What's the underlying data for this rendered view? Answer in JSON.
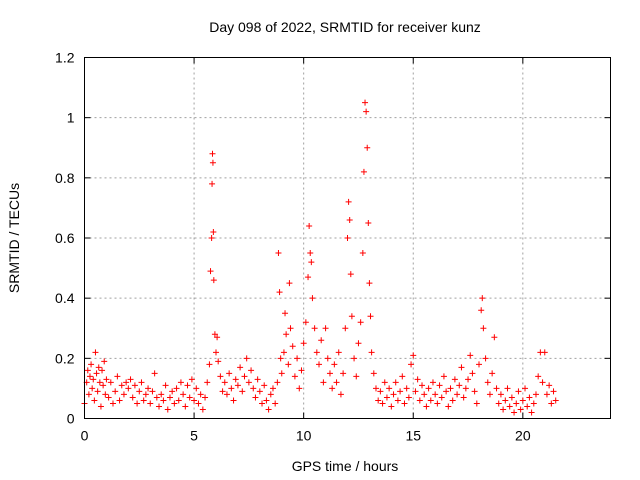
{
  "chart_data": {
    "type": "scatter",
    "title": "Day 098 of 2022, SRMTID for receiver kunz",
    "xlabel": "GPS time / hours",
    "ylabel": "SRMTID / TECUs",
    "xlim": [
      0,
      24
    ],
    "ylim": [
      0,
      1.2
    ],
    "x_ticks": [
      0,
      5,
      10,
      15,
      20
    ],
    "x_tick_labels": [
      "0",
      "5",
      "10",
      "15",
      "20"
    ],
    "y_ticks": [
      0,
      0.2,
      0.4,
      0.6,
      0.8,
      1.0,
      1.2
    ],
    "y_tick_labels": [
      "0",
      "0.2",
      "0.4",
      "0.6",
      "0.8",
      "1",
      "1.2"
    ],
    "grid": true,
    "marker": "+",
    "color": "#ff0000",
    "series": [
      {
        "name": "SRMTID",
        "points": [
          [
            0.0,
            0.05
          ],
          [
            0.1,
            0.12
          ],
          [
            0.15,
            0.16
          ],
          [
            0.2,
            0.08
          ],
          [
            0.25,
            0.14
          ],
          [
            0.3,
            0.18
          ],
          [
            0.35,
            0.1
          ],
          [
            0.4,
            0.13
          ],
          [
            0.45,
            0.06
          ],
          [
            0.5,
            0.22
          ],
          [
            0.55,
            0.15
          ],
          [
            0.6,
            0.09
          ],
          [
            0.65,
            0.17
          ],
          [
            0.7,
            0.12
          ],
          [
            0.75,
            0.04
          ],
          [
            0.8,
            0.16
          ],
          [
            0.85,
            0.11
          ],
          [
            0.9,
            0.19
          ],
          [
            0.95,
            0.08
          ],
          [
            1.0,
            0.13
          ],
          [
            1.1,
            0.07
          ],
          [
            1.2,
            0.12
          ],
          [
            1.3,
            0.05
          ],
          [
            1.4,
            0.09
          ],
          [
            1.5,
            0.14
          ],
          [
            1.6,
            0.06
          ],
          [
            1.7,
            0.11
          ],
          [
            1.8,
            0.08
          ],
          [
            1.9,
            0.12
          ],
          [
            2.0,
            0.1
          ],
          [
            2.1,
            0.13
          ],
          [
            2.2,
            0.07
          ],
          [
            2.3,
            0.11
          ],
          [
            2.4,
            0.05
          ],
          [
            2.5,
            0.09
          ],
          [
            2.6,
            0.12
          ],
          [
            2.7,
            0.06
          ],
          [
            2.8,
            0.08
          ],
          [
            2.9,
            0.1
          ],
          [
            3.0,
            0.05
          ],
          [
            3.1,
            0.09
          ],
          [
            3.2,
            0.15
          ],
          [
            3.3,
            0.07
          ],
          [
            3.4,
            0.04
          ],
          [
            3.5,
            0.08
          ],
          [
            3.6,
            0.06
          ],
          [
            3.7,
            0.11
          ],
          [
            3.8,
            0.03
          ],
          [
            3.9,
            0.07
          ],
          [
            4.0,
            0.09
          ],
          [
            4.1,
            0.05
          ],
          [
            4.2,
            0.1
          ],
          [
            4.3,
            0.06
          ],
          [
            4.4,
            0.12
          ],
          [
            4.5,
            0.08
          ],
          [
            4.6,
            0.04
          ],
          [
            4.7,
            0.11
          ],
          [
            4.8,
            0.07
          ],
          [
            4.9,
            0.13
          ],
          [
            5.0,
            0.06
          ],
          [
            5.1,
            0.1
          ],
          [
            5.2,
            0.05
          ],
          [
            5.3,
            0.08
          ],
          [
            5.4,
            0.03
          ],
          [
            5.5,
            0.07
          ],
          [
            5.6,
            0.12
          ],
          [
            5.7,
            0.18
          ],
          [
            5.75,
            0.49
          ],
          [
            5.8,
            0.6
          ],
          [
            5.82,
            0.78
          ],
          [
            5.84,
            0.88
          ],
          [
            5.86,
            0.85
          ],
          [
            5.88,
            0.62
          ],
          [
            5.9,
            0.46
          ],
          [
            5.95,
            0.28
          ],
          [
            6.0,
            0.22
          ],
          [
            6.05,
            0.27
          ],
          [
            6.1,
            0.19
          ],
          [
            6.2,
            0.14
          ],
          [
            6.3,
            0.09
          ],
          [
            6.4,
            0.12
          ],
          [
            6.5,
            0.08
          ],
          [
            6.6,
            0.15
          ],
          [
            6.7,
            0.1
          ],
          [
            6.8,
            0.06
          ],
          [
            6.9,
            0.13
          ],
          [
            7.0,
            0.11
          ],
          [
            7.1,
            0.17
          ],
          [
            7.2,
            0.09
          ],
          [
            7.3,
            0.14
          ],
          [
            7.4,
            0.2
          ],
          [
            7.5,
            0.12
          ],
          [
            7.6,
            0.16
          ],
          [
            7.7,
            0.1
          ],
          [
            7.8,
            0.07
          ],
          [
            7.9,
            0.13
          ],
          [
            8.0,
            0.09
          ],
          [
            8.1,
            0.05
          ],
          [
            8.2,
            0.11
          ],
          [
            8.3,
            0.06
          ],
          [
            8.4,
            0.03
          ],
          [
            8.5,
            0.08
          ],
          [
            8.6,
            0.1
          ],
          [
            8.7,
            0.05
          ],
          [
            8.8,
            0.12
          ],
          [
            8.85,
            0.55
          ],
          [
            8.9,
            0.42
          ],
          [
            8.95,
            0.2
          ],
          [
            9.0,
            0.15
          ],
          [
            9.1,
            0.22
          ],
          [
            9.15,
            0.35
          ],
          [
            9.2,
            0.28
          ],
          [
            9.3,
            0.18
          ],
          [
            9.35,
            0.45
          ],
          [
            9.4,
            0.3
          ],
          [
            9.5,
            0.24
          ],
          [
            9.6,
            0.14
          ],
          [
            9.7,
            0.2
          ],
          [
            9.8,
            0.1
          ],
          [
            9.9,
            0.16
          ],
          [
            10.0,
            0.25
          ],
          [
            10.1,
            0.32
          ],
          [
            10.2,
            0.47
          ],
          [
            10.25,
            0.64
          ],
          [
            10.3,
            0.55
          ],
          [
            10.35,
            0.52
          ],
          [
            10.4,
            0.4
          ],
          [
            10.5,
            0.3
          ],
          [
            10.6,
            0.22
          ],
          [
            10.7,
            0.18
          ],
          [
            10.8,
            0.26
          ],
          [
            10.9,
            0.12
          ],
          [
            11.0,
            0.3
          ],
          [
            11.1,
            0.2
          ],
          [
            11.2,
            0.15
          ],
          [
            11.3,
            0.1
          ],
          [
            11.4,
            0.18
          ],
          [
            11.5,
            0.12
          ],
          [
            11.6,
            0.22
          ],
          [
            11.7,
            0.08
          ],
          [
            11.8,
            0.15
          ],
          [
            11.9,
            0.3
          ],
          [
            12.0,
            0.6
          ],
          [
            12.05,
            0.72
          ],
          [
            12.1,
            0.66
          ],
          [
            12.15,
            0.48
          ],
          [
            12.2,
            0.34
          ],
          [
            12.3,
            0.2
          ],
          [
            12.4,
            0.14
          ],
          [
            12.5,
            0.25
          ],
          [
            12.6,
            0.32
          ],
          [
            12.7,
            0.55
          ],
          [
            12.75,
            0.82
          ],
          [
            12.8,
            1.05
          ],
          [
            12.85,
            1.02
          ],
          [
            12.9,
            0.9
          ],
          [
            12.95,
            0.65
          ],
          [
            13.0,
            0.45
          ],
          [
            13.05,
            0.34
          ],
          [
            13.1,
            0.22
          ],
          [
            13.2,
            0.15
          ],
          [
            13.3,
            0.1
          ],
          [
            13.4,
            0.06
          ],
          [
            13.5,
            0.09
          ],
          [
            13.6,
            0.05
          ],
          [
            13.7,
            0.12
          ],
          [
            13.8,
            0.07
          ],
          [
            13.9,
            0.1
          ],
          [
            14.0,
            0.04
          ],
          [
            14.1,
            0.08
          ],
          [
            14.2,
            0.12
          ],
          [
            14.3,
            0.06
          ],
          [
            14.4,
            0.09
          ],
          [
            14.5,
            0.14
          ],
          [
            14.6,
            0.05
          ],
          [
            14.7,
            0.1
          ],
          [
            14.8,
            0.07
          ],
          [
            14.9,
            0.18
          ],
          [
            15.0,
            0.21
          ],
          [
            15.1,
            0.09
          ],
          [
            15.2,
            0.13
          ],
          [
            15.3,
            0.06
          ],
          [
            15.4,
            0.11
          ],
          [
            15.5,
            0.08
          ],
          [
            15.6,
            0.04
          ],
          [
            15.7,
            0.1
          ],
          [
            15.8,
            0.06
          ],
          [
            15.9,
            0.12
          ],
          [
            16.0,
            0.08
          ],
          [
            16.1,
            0.05
          ],
          [
            16.2,
            0.11
          ],
          [
            16.3,
            0.07
          ],
          [
            16.4,
            0.14
          ],
          [
            16.5,
            0.09
          ],
          [
            16.6,
            0.04
          ],
          [
            16.7,
            0.1
          ],
          [
            16.8,
            0.06
          ],
          [
            16.9,
            0.13
          ],
          [
            17.0,
            0.08
          ],
          [
            17.1,
            0.11
          ],
          [
            17.2,
            0.17
          ],
          [
            17.3,
            0.07
          ],
          [
            17.4,
            0.1
          ],
          [
            17.5,
            0.13
          ],
          [
            17.6,
            0.21
          ],
          [
            17.7,
            0.15
          ],
          [
            17.8,
            0.09
          ],
          [
            17.9,
            0.05
          ],
          [
            18.0,
            0.18
          ],
          [
            18.1,
            0.36
          ],
          [
            18.15,
            0.4
          ],
          [
            18.2,
            0.3
          ],
          [
            18.3,
            0.2
          ],
          [
            18.4,
            0.12
          ],
          [
            18.5,
            0.08
          ],
          [
            18.6,
            0.15
          ],
          [
            18.7,
            0.27
          ],
          [
            18.8,
            0.1
          ],
          [
            18.9,
            0.05
          ],
          [
            19.0,
            0.08
          ],
          [
            19.1,
            0.03
          ],
          [
            19.2,
            0.06
          ],
          [
            19.3,
            0.1
          ],
          [
            19.4,
            0.04
          ],
          [
            19.5,
            0.07
          ],
          [
            19.6,
            0.02
          ],
          [
            19.7,
            0.05
          ],
          [
            19.8,
            0.09
          ],
          [
            19.9,
            0.03
          ],
          [
            20.0,
            0.06
          ],
          [
            20.1,
            0.1
          ],
          [
            20.2,
            0.04
          ],
          [
            20.3,
            0.07
          ],
          [
            20.4,
            0.02
          ],
          [
            20.5,
            0.05
          ],
          [
            20.6,
            0.08
          ],
          [
            20.7,
            0.14
          ],
          [
            20.8,
            0.22
          ],
          [
            20.9,
            0.12
          ],
          [
            21.0,
            0.22
          ],
          [
            21.1,
            0.08
          ],
          [
            21.2,
            0.11
          ],
          [
            21.3,
            0.05
          ],
          [
            21.4,
            0.09
          ],
          [
            21.5,
            0.06
          ]
        ]
      }
    ]
  }
}
